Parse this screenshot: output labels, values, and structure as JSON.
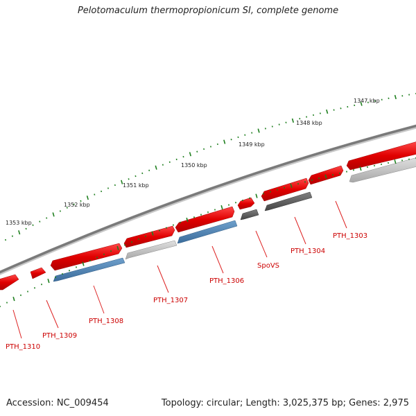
{
  "title": "Pelotomaculum thermopropionicum SI, complete genome",
  "footer": {
    "accession": "Accession: NC_009454",
    "topology": "Topology: circular; Length: 3,025,375 bp; Genes: 2,975"
  },
  "colors": {
    "forward_gene": "#e00000",
    "reverse_gene_blue": "#4a7fb0",
    "reverse_gene_gray": "#bdbdbd",
    "reverse_gene_dark": "#5c5c5c",
    "backbone": "#808080",
    "tick": "#1f7f1f",
    "label_red": "#cc0000",
    "leader_red": "#dd2222"
  },
  "kbp_ticks": [
    "1353 kbp",
    "1352 kbp",
    "1351 kbp",
    "1350 kbp",
    "1349 kbp",
    "1348 kbp",
    "1347 kbp"
  ],
  "genes": [
    "PTH_1310",
    "PTH_1309",
    "PTH_1308",
    "PTH_1307",
    "PTH_1306",
    "SpoVS",
    "PTH_1304",
    "PTH_1303"
  ]
}
